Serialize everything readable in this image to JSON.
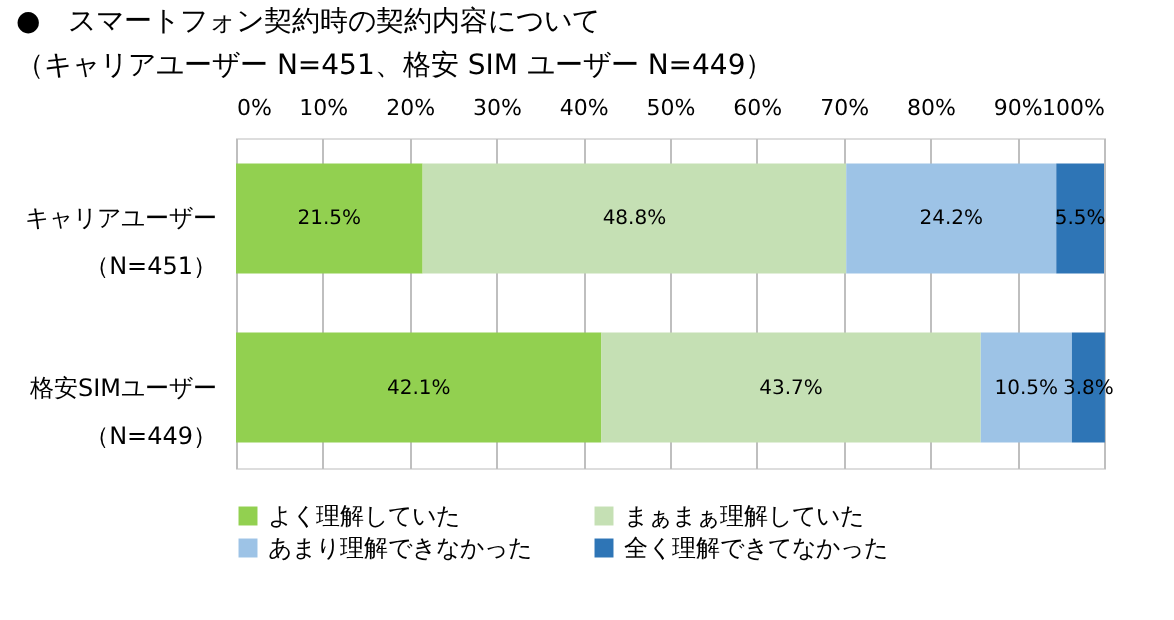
{
  "chart_data": {
    "type": "bar",
    "orientation": "horizontal",
    "stacked": true,
    "title": "●　スマートフォン契約時の契約内容について",
    "subtitle": "（キャリアユーザー N=451、格安 SIM ユーザー N=449）",
    "categories": [
      "キャリアユーザー（N=451）",
      "格安SIMユーザー（N=449）"
    ],
    "series": [
      {
        "name": "よく理解していた",
        "color": "#92d050",
        "values": [
          21.5,
          42.1
        ],
        "value_labels": [
          "21.5%",
          "42.1%"
        ]
      },
      {
        "name": "まぁまぁ理解していた",
        "color": "#c5e0b4",
        "values": [
          48.8,
          43.7
        ],
        "value_labels": [
          "48.8%",
          "43.7%"
        ]
      },
      {
        "name": "あまり理解できなかった",
        "color": "#9dc3e6",
        "values": [
          24.2,
          10.5
        ],
        "value_labels": [
          "24.2%",
          "10.5%"
        ]
      },
      {
        "name": "全く理解できてなかった",
        "color": "#2e75b6",
        "values": [
          5.5,
          3.8
        ],
        "value_labels": [
          "5.5%",
          "3.8%"
        ]
      }
    ],
    "xlim": [
      0,
      100
    ],
    "xticks": [
      {
        "value": 0,
        "label": "0%"
      },
      {
        "value": 10,
        "label": "10%"
      },
      {
        "value": 20,
        "label": "20%"
      },
      {
        "value": 30,
        "label": "30%"
      },
      {
        "value": 40,
        "label": "40%"
      },
      {
        "value": 50,
        "label": "50%"
      },
      {
        "value": 60,
        "label": "60%"
      },
      {
        "value": 70,
        "label": "70%"
      },
      {
        "value": 80,
        "label": "80%"
      },
      {
        "value": 90,
        "label": "90%"
      },
      {
        "value": 100,
        "label": "100%"
      }
    ],
    "grid": "x",
    "legend": "bottom"
  }
}
